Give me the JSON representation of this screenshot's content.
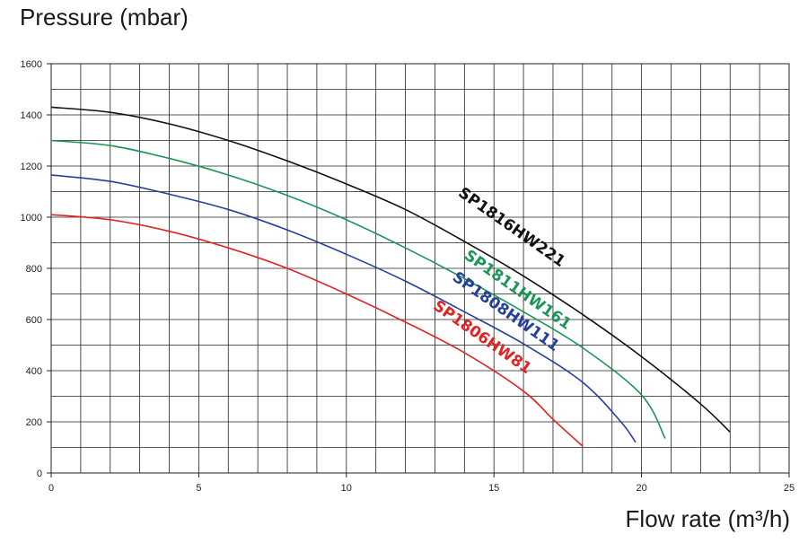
{
  "chart_data": {
    "type": "line",
    "ylabel": "Pressure (mbar)",
    "xlabel": "Flow rate (m³/h)",
    "xlim": [
      0,
      25
    ],
    "ylim": [
      0,
      1600
    ],
    "x_ticks": [
      0,
      5,
      10,
      15,
      20,
      25
    ],
    "y_ticks": [
      0,
      200,
      400,
      600,
      800,
      1000,
      1200,
      1400,
      1600
    ],
    "x_grid_step": 1,
    "y_grid_step": 100,
    "grid": true,
    "legend": "inline-labels",
    "series": [
      {
        "name": "SP1816HW221",
        "color": "#111111",
        "points": [
          [
            0,
            1430
          ],
          [
            2,
            1410
          ],
          [
            4,
            1365
          ],
          [
            6,
            1300
          ],
          [
            8,
            1220
          ],
          [
            10,
            1130
          ],
          [
            12,
            1030
          ],
          [
            14,
            905
          ],
          [
            16,
            770
          ],
          [
            18,
            620
          ],
          [
            20,
            455
          ],
          [
            22,
            270
          ],
          [
            23,
            160
          ]
        ],
        "label_at": [
          15.6,
          960
        ],
        "label_angle": 35
      },
      {
        "name": "SP1811HW161",
        "color": "#1a9656",
        "points": [
          [
            0,
            1300
          ],
          [
            2,
            1280
          ],
          [
            4,
            1230
          ],
          [
            6,
            1165
          ],
          [
            8,
            1085
          ],
          [
            10,
            990
          ],
          [
            12,
            880
          ],
          [
            14,
            760
          ],
          [
            16,
            630
          ],
          [
            18,
            490
          ],
          [
            20,
            305
          ],
          [
            20.8,
            135
          ]
        ],
        "label_at": [
          15.8,
          715
        ],
        "label_angle": 35
      },
      {
        "name": "SP1808HW111",
        "color": "#243f9e",
        "points": [
          [
            0,
            1165
          ],
          [
            2,
            1140
          ],
          [
            4,
            1090
          ],
          [
            6,
            1030
          ],
          [
            8,
            950
          ],
          [
            10,
            855
          ],
          [
            12,
            750
          ],
          [
            14,
            630
          ],
          [
            16,
            505
          ],
          [
            18,
            355
          ],
          [
            19.3,
            200
          ],
          [
            19.8,
            120
          ]
        ],
        "label_at": [
          15.4,
          630
        ],
        "label_angle": 35
      },
      {
        "name": "SP1806HW81",
        "color": "#e02424",
        "points": [
          [
            0,
            1010
          ],
          [
            2,
            990
          ],
          [
            4,
            945
          ],
          [
            6,
            880
          ],
          [
            8,
            800
          ],
          [
            10,
            700
          ],
          [
            12,
            590
          ],
          [
            14,
            470
          ],
          [
            16,
            320
          ],
          [
            17,
            210
          ],
          [
            18,
            105
          ]
        ],
        "label_at": [
          14.6,
          530
        ],
        "label_angle": 35
      }
    ]
  }
}
